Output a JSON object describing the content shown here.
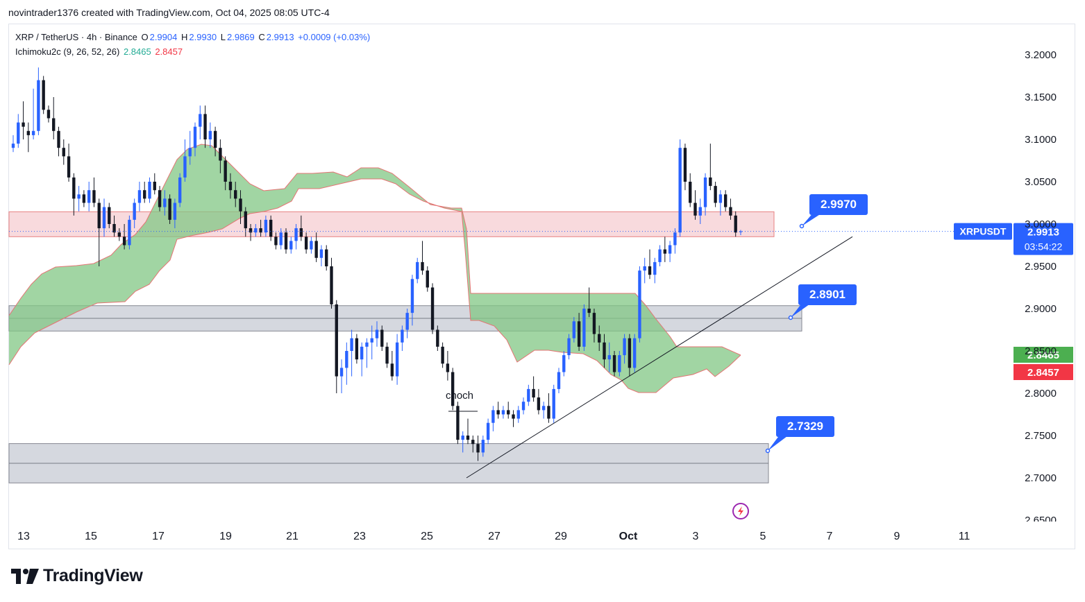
{
  "attribution": "novintrader1376 created with TradingView.com, Oct 04, 2025 08:05 UTC-4",
  "legend": {
    "symbol": "XRP / TetherUS · 4h · Binance",
    "o_label": "O",
    "o": "2.9904",
    "h_label": "H",
    "h": "2.9930",
    "l_label": "L",
    "l": "2.9869",
    "c_label": "C",
    "c": "2.9913",
    "change": "+0.0009 (+0.03%)",
    "indicator": "Ichimoku2c (9, 26, 52, 26)",
    "ichi_a": "2.8465",
    "ichi_b": "2.8457"
  },
  "brand": "TradingView",
  "colors": {
    "up": "#2962ff",
    "down": "#131722",
    "cloud_fill": "#81c784",
    "cloud_edge": "#e57373",
    "resistance_zone": "#f8d7da",
    "support_zone": "#d1d4dc",
    "accent": "#2962ff",
    "ichi_a": "#4caf50",
    "ichi_b": "#f23645"
  },
  "chart_data": {
    "type": "candlestick",
    "y_axis": {
      "ticks": [
        "3.2000",
        "3.1500",
        "3.1000",
        "3.0500",
        "3.0000",
        "2.9500",
        "2.9000",
        "2.8500",
        "2.8000",
        "2.7500",
        "2.7000",
        "2.6500"
      ],
      "range": [
        2.65,
        3.2
      ]
    },
    "x_axis": {
      "ticks": [
        "13",
        "15",
        "17",
        "19",
        "21",
        "23",
        "25",
        "27",
        "29",
        "Oct",
        "3",
        "5",
        "7",
        "9",
        "11"
      ]
    },
    "price_label": {
      "symbol": "XRPUSDT",
      "price": "2.9913",
      "countdown": "03:54:22"
    },
    "ichimoku_labels": {
      "a": "2.8465",
      "b": "2.8457"
    },
    "zones": [
      {
        "kind": "resistance",
        "top": 3.0145,
        "bottom": 2.985
      },
      {
        "kind": "support",
        "top": 2.9035,
        "bottom": 2.8735
      },
      {
        "kind": "support",
        "top": 2.7405,
        "bottom": 2.694
      }
    ],
    "callouts": [
      "2.9970",
      "2.8901",
      "2.7329"
    ],
    "annotations": [
      "choch"
    ],
    "trendline": {
      "from": {
        "date": "Sep 26",
        "price": 2.7
      },
      "to": {
        "date": "Oct 7",
        "price": 2.985
      }
    },
    "candles": [
      [
        3.09,
        3.105,
        3.085,
        3.095
      ],
      [
        3.095,
        3.13,
        3.09,
        3.12
      ],
      [
        3.12,
        3.145,
        3.1,
        3.115
      ],
      [
        3.11,
        3.12,
        3.085,
        3.105
      ],
      [
        3.105,
        3.16,
        3.1,
        3.11
      ],
      [
        3.11,
        3.185,
        3.105,
        3.17
      ],
      [
        3.17,
        3.175,
        3.13,
        3.135
      ],
      [
        3.135,
        3.14,
        3.12,
        3.125
      ],
      [
        3.125,
        3.15,
        3.1,
        3.11
      ],
      [
        3.11,
        3.115,
        3.08,
        3.09
      ],
      [
        3.09,
        3.1,
        3.07,
        3.08
      ],
      [
        3.08,
        3.095,
        3.05,
        3.055
      ],
      [
        3.055,
        3.06,
        3.01,
        3.03
      ],
      [
        3.03,
        3.045,
        3.015,
        3.035
      ],
      [
        3.035,
        3.04,
        3.02,
        3.025
      ],
      [
        3.025,
        3.05,
        3.015,
        3.04
      ],
      [
        3.04,
        3.055,
        3.02,
        3.025
      ],
      [
        3.025,
        3.03,
        2.95,
        2.995
      ],
      [
        2.995,
        3.03,
        2.985,
        3.02
      ],
      [
        3.02,
        3.025,
        2.995,
        3.0
      ],
      [
        3.0,
        3.01,
        2.985,
        2.99
      ],
      [
        2.99,
        2.995,
        2.98,
        2.985
      ],
      [
        2.985,
        3.0,
        2.97,
        2.975
      ],
      [
        2.975,
        3.01,
        2.97,
        3.005
      ],
      [
        3.005,
        3.03,
        2.995,
        3.025
      ],
      [
        3.025,
        3.05,
        3.015,
        3.04
      ],
      [
        3.04,
        3.05,
        3.025,
        3.03
      ],
      [
        3.03,
        3.055,
        3.025,
        3.05
      ],
      [
        3.05,
        3.06,
        3.035,
        3.04
      ],
      [
        3.04,
        3.045,
        3.015,
        3.02
      ],
      [
        3.02,
        3.04,
        3.01,
        3.03
      ],
      [
        3.03,
        3.035,
        3.0,
        3.005
      ],
      [
        3.005,
        3.03,
        2.995,
        3.025
      ],
      [
        3.025,
        3.06,
        3.02,
        3.055
      ],
      [
        3.055,
        3.1,
        3.05,
        3.08
      ],
      [
        3.08,
        3.11,
        3.07,
        3.09
      ],
      [
        3.09,
        3.12,
        3.08,
        3.115
      ],
      [
        3.115,
        3.14,
        3.1,
        3.13
      ],
      [
        3.13,
        3.14,
        3.09,
        3.1
      ],
      [
        3.1,
        3.12,
        3.09,
        3.11
      ],
      [
        3.11,
        3.115,
        3.08,
        3.09
      ],
      [
        3.09,
        3.1,
        3.06,
        3.075
      ],
      [
        3.075,
        3.08,
        3.04,
        3.05
      ],
      [
        3.05,
        3.06,
        3.03,
        3.04
      ],
      [
        3.04,
        3.05,
        3.02,
        3.03
      ],
      [
        3.03,
        3.04,
        3.0,
        3.015
      ],
      [
        3.015,
        3.02,
        2.985,
        2.995
      ],
      [
        2.995,
        3.0,
        2.98,
        2.99
      ],
      [
        2.99,
        3.0,
        2.985,
        2.995
      ],
      [
        2.995,
        3.005,
        2.985,
        2.99
      ],
      [
        2.99,
        3.01,
        2.985,
        3.005
      ],
      [
        3.005,
        3.01,
        2.98,
        2.985
      ],
      [
        2.985,
        2.99,
        2.97,
        2.975
      ],
      [
        2.975,
        2.995,
        2.97,
        2.99
      ],
      [
        2.99,
        2.995,
        2.965,
        2.97
      ],
      [
        2.97,
        2.985,
        2.965,
        2.98
      ],
      [
        2.98,
        3.0,
        2.97,
        2.995
      ],
      [
        2.995,
        3.01,
        2.98,
        2.985
      ],
      [
        2.985,
        2.99,
        2.965,
        2.97
      ],
      [
        2.97,
        2.985,
        2.965,
        2.98
      ],
      [
        2.98,
        2.99,
        2.955,
        2.96
      ],
      [
        2.96,
        2.975,
        2.95,
        2.97
      ],
      [
        2.97,
        2.975,
        2.945,
        2.95
      ],
      [
        2.95,
        2.96,
        2.9,
        2.905
      ],
      [
        2.905,
        2.91,
        2.8,
        2.82
      ],
      [
        2.82,
        2.84,
        2.8,
        2.83
      ],
      [
        2.83,
        2.86,
        2.81,
        2.85
      ],
      [
        2.85,
        2.875,
        2.82,
        2.865
      ],
      [
        2.865,
        2.87,
        2.835,
        2.84
      ],
      [
        2.84,
        2.86,
        2.82,
        2.855
      ],
      [
        2.855,
        2.865,
        2.83,
        2.86
      ],
      [
        2.86,
        2.88,
        2.84,
        2.865
      ],
      [
        2.865,
        2.885,
        2.855,
        2.875
      ],
      [
        2.875,
        2.88,
        2.85,
        2.855
      ],
      [
        2.855,
        2.86,
        2.83,
        2.835
      ],
      [
        2.835,
        2.85,
        2.815,
        2.82
      ],
      [
        2.82,
        2.87,
        2.81,
        2.86
      ],
      [
        2.86,
        2.88,
        2.85,
        2.875
      ],
      [
        2.875,
        2.9,
        2.865,
        2.895
      ],
      [
        2.895,
        2.94,
        2.88,
        2.935
      ],
      [
        2.935,
        2.96,
        2.93,
        2.955
      ],
      [
        2.955,
        2.98,
        2.94,
        2.945
      ],
      [
        2.945,
        2.95,
        2.92,
        2.925
      ],
      [
        2.925,
        2.93,
        2.87,
        2.875
      ],
      [
        2.875,
        2.88,
        2.85,
        2.855
      ],
      [
        2.855,
        2.86,
        2.83,
        2.835
      ],
      [
        2.835,
        2.85,
        2.815,
        2.825
      ],
      [
        2.825,
        2.83,
        2.78,
        2.785
      ],
      [
        2.785,
        2.79,
        2.74,
        2.745
      ],
      [
        2.745,
        2.755,
        2.73,
        2.75
      ],
      [
        2.75,
        2.77,
        2.74,
        2.745
      ],
      [
        2.745,
        2.75,
        2.73,
        2.74
      ],
      [
        2.74,
        2.75,
        2.72,
        2.73
      ],
      [
        2.73,
        2.75,
        2.725,
        2.745
      ],
      [
        2.745,
        2.77,
        2.74,
        2.765
      ],
      [
        2.765,
        2.785,
        2.755,
        2.78
      ],
      [
        2.78,
        2.79,
        2.77,
        2.775
      ],
      [
        2.775,
        2.785,
        2.77,
        2.78
      ],
      [
        2.78,
        2.79,
        2.77,
        2.775
      ],
      [
        2.775,
        2.78,
        2.76,
        2.77
      ],
      [
        2.77,
        2.785,
        2.765,
        2.78
      ],
      [
        2.78,
        2.795,
        2.775,
        2.79
      ],
      [
        2.79,
        2.81,
        2.785,
        2.805
      ],
      [
        2.805,
        2.82,
        2.79,
        2.795
      ],
      [
        2.795,
        2.805,
        2.775,
        2.78
      ],
      [
        2.78,
        2.79,
        2.77,
        2.785
      ],
      [
        2.785,
        2.8,
        2.765,
        2.77
      ],
      [
        2.77,
        2.81,
        2.765,
        2.805
      ],
      [
        2.805,
        2.83,
        2.8,
        2.825
      ],
      [
        2.825,
        2.85,
        2.82,
        2.845
      ],
      [
        2.845,
        2.87,
        2.84,
        2.865
      ],
      [
        2.865,
        2.89,
        2.86,
        2.885
      ],
      [
        2.885,
        2.895,
        2.85,
        2.855
      ],
      [
        2.855,
        2.905,
        2.85,
        2.9
      ],
      [
        2.9,
        2.925,
        2.89,
        2.895
      ],
      [
        2.895,
        2.9,
        2.86,
        2.87
      ],
      [
        2.87,
        2.88,
        2.85,
        2.86
      ],
      [
        2.86,
        2.87,
        2.83,
        2.84
      ],
      [
        2.84,
        2.86,
        2.825,
        2.845
      ],
      [
        2.845,
        2.85,
        2.82,
        2.825
      ],
      [
        2.825,
        2.85,
        2.82,
        2.845
      ],
      [
        2.845,
        2.87,
        2.835,
        2.865
      ],
      [
        2.865,
        2.87,
        2.82,
        2.83
      ],
      [
        2.83,
        2.87,
        2.825,
        2.865
      ],
      [
        2.865,
        2.95,
        2.86,
        2.945
      ],
      [
        2.945,
        2.96,
        2.93,
        2.95
      ],
      [
        2.95,
        2.97,
        2.935,
        2.94
      ],
      [
        2.94,
        2.96,
        2.93,
        2.955
      ],
      [
        2.955,
        2.975,
        2.95,
        2.97
      ],
      [
        2.97,
        2.985,
        2.955,
        2.965
      ],
      [
        2.965,
        2.98,
        2.955,
        2.975
      ],
      [
        2.975,
        2.995,
        2.965,
        2.99
      ],
      [
        2.99,
        3.1,
        2.985,
        3.09
      ],
      [
        3.09,
        3.095,
        3.04,
        3.05
      ],
      [
        3.05,
        3.06,
        3.02,
        3.025
      ],
      [
        3.025,
        3.04,
        3.005,
        3.01
      ],
      [
        3.01,
        3.03,
        3.0,
        3.02
      ],
      [
        3.02,
        3.06,
        3.01,
        3.055
      ],
      [
        3.055,
        3.095,
        3.04,
        3.045
      ],
      [
        3.045,
        3.05,
        3.02,
        3.025
      ],
      [
        3.025,
        3.04,
        3.01,
        3.035
      ],
      [
        3.035,
        3.04,
        3.015,
        3.02
      ],
      [
        3.02,
        3.03,
        3.005,
        3.01
      ],
      [
        3.01,
        3.015,
        2.985,
        2.99
      ],
      [
        2.9904,
        2.993,
        2.9869,
        2.9913
      ]
    ]
  }
}
